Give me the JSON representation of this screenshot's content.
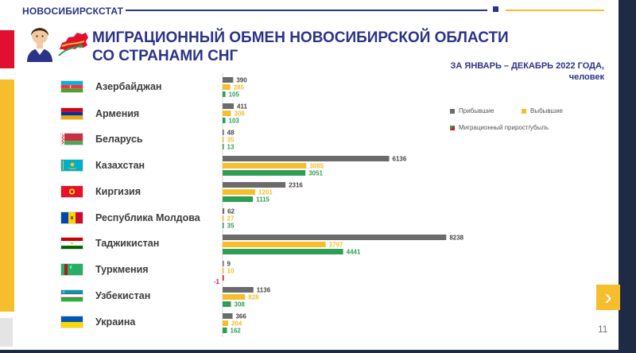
{
  "header": {
    "brand": "НОВОСИБИРСКСТАТ",
    "title_line1": "МИГРАЦИОННЫЙ ОБМЕН НОВОСИБИРСКОЙ ОБЛАСТИ",
    "title_line2": "СО СТРАНАМИ СНГ",
    "period_line1": "ЗА ЯНВАРЬ – ДЕКАБРЬ 2022 ГОДА,",
    "period_line2": "человек"
  },
  "colors": {
    "arrived": "#6b6b6b",
    "departed": "#f6be2c",
    "net_positive": "#2e9e55",
    "net_negative": "#e0102e",
    "brand_blue": "#2b3487"
  },
  "legend": {
    "arrived": "Прибывшие",
    "departed": "Выбывшие",
    "net": "Миграционный прирост/убыль"
  },
  "chart_data": {
    "type": "bar",
    "orientation": "horizontal",
    "categories": [
      "Азербайджан",
      "Армения",
      "Беларусь",
      "Казахстан",
      "Киргизия",
      "Республика Молдова",
      "Таджикистан",
      "Туркмения",
      "Узбекистан",
      "Украина"
    ],
    "series": [
      {
        "name": "Прибывшие",
        "values": [
          390,
          411,
          48,
          6136,
          2316,
          62,
          8238,
          9,
          1136,
          366
        ]
      },
      {
        "name": "Выбывшие",
        "values": [
          285,
          308,
          35,
          3085,
          1201,
          27,
          3797,
          10,
          828,
          204
        ]
      },
      {
        "name": "Миграционный прирост/убыль",
        "values": [
          105,
          103,
          13,
          3051,
          1115,
          35,
          4441,
          -1,
          308,
          162
        ]
      }
    ],
    "legend_position": "right",
    "data_labels": true
  },
  "footer": {
    "page_number": "11",
    "next_icon": "chevron-right-icon"
  }
}
